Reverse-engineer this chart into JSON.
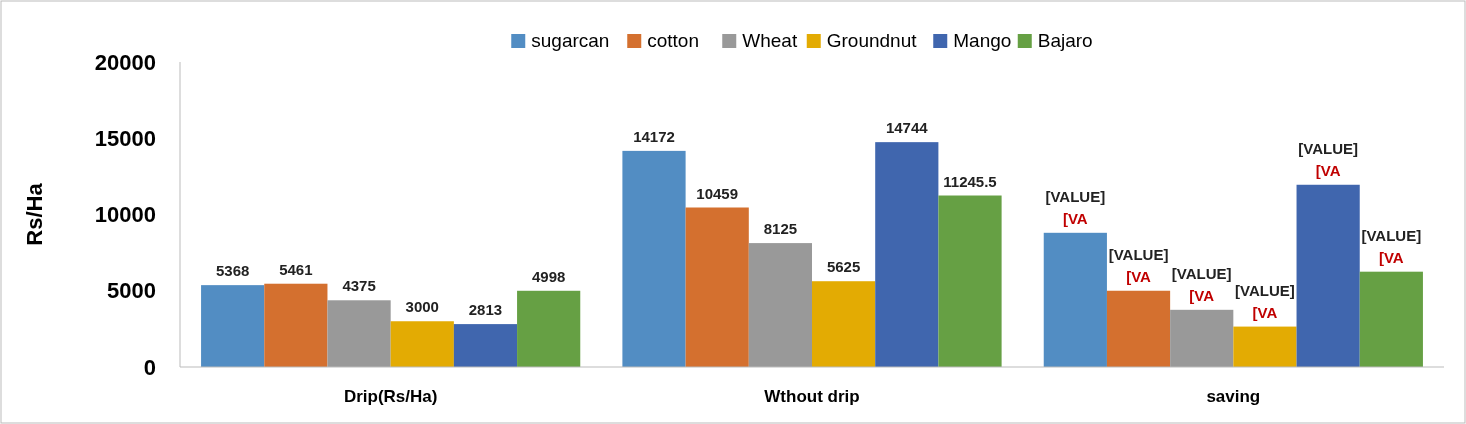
{
  "chart_data": {
    "type": "bar",
    "ylabel": "Rs/Ha",
    "categories": [
      "Drip(Rs/Ha)",
      "Wthout drip",
      "saving"
    ],
    "series": [
      {
        "name": "sugarcan",
        "color": "#528dc3",
        "values": [
          5368,
          14172,
          8800
        ],
        "value_labels": [
          "5368",
          "14172",
          "[VALUE]\n[VA"
        ]
      },
      {
        "name": "cotton",
        "color": "#d4702f",
        "values": [
          5461,
          10459,
          5000
        ],
        "value_labels": [
          "5461",
          "10459",
          "[VALUE]\n[VA"
        ]
      },
      {
        "name": "Wheat",
        "color": "#999999",
        "values": [
          4375,
          8125,
          3750
        ],
        "value_labels": [
          "4375",
          "8125",
          "[VALUE]\n[VA"
        ]
      },
      {
        "name": "Groundnut",
        "color": "#e3ab03",
        "values": [
          3000,
          5625,
          2650
        ],
        "value_labels": [
          "3000",
          "5625",
          "[VALUE]\n[VA"
        ]
      },
      {
        "name": "Mango",
        "color": "#4066ae",
        "values": [
          2813,
          14744,
          11950
        ],
        "value_labels": [
          "2813",
          "14744",
          "[VALUE]\n[VA"
        ]
      },
      {
        "name": "Bajaro",
        "color": "#66a044",
        "values": [
          4998,
          11245.5,
          6250
        ],
        "value_labels": [
          "4998",
          "11245.5",
          "[VALUE]\n[VA"
        ]
      }
    ],
    "ylim": [
      0,
      20000
    ],
    "yticks": [
      0,
      5000,
      10000,
      15000,
      20000
    ],
    "grid": false,
    "legend": "top"
  }
}
